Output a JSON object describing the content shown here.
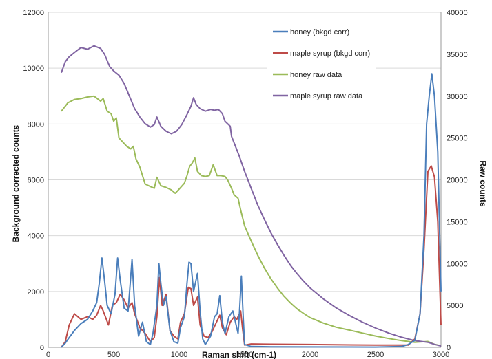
{
  "chart_data": {
    "type": "line",
    "xlabel": "Raman shift (cm-1)",
    "ylabel_left": "Background corrected counts",
    "ylabel_right": "Raw counts",
    "xlim": [
      0,
      3000
    ],
    "ylim_left": [
      0,
      12000
    ],
    "ylim_right": [
      0,
      40000
    ],
    "x_ticks": [
      "0",
      "500",
      "1000",
      "1500",
      "2000",
      "2500",
      "3000"
    ],
    "y_left_ticks": [
      "0",
      "2000",
      "4000",
      "6000",
      "8000",
      "10000",
      "12000"
    ],
    "y_right_ticks": [
      "0",
      "5000",
      "10000",
      "15000",
      "20000",
      "25000",
      "30000",
      "35000",
      "40000"
    ],
    "grid": true,
    "legend_position": "top-right",
    "series": [
      {
        "name": "honey (bkgd corr)",
        "axis": "left",
        "color": "#4a7ebb",
        "points": [
          [
            100,
            0
          ],
          [
            130,
            150
          ],
          [
            160,
            350
          ],
          [
            200,
            600
          ],
          [
            250,
            850
          ],
          [
            300,
            1000
          ],
          [
            340,
            1300
          ],
          [
            370,
            1600
          ],
          [
            390,
            2300
          ],
          [
            410,
            3200
          ],
          [
            430,
            2400
          ],
          [
            450,
            1500
          ],
          [
            480,
            1200
          ],
          [
            510,
            1900
          ],
          [
            530,
            3200
          ],
          [
            550,
            2400
          ],
          [
            580,
            1400
          ],
          [
            610,
            1300
          ],
          [
            640,
            3150
          ],
          [
            660,
            1500
          ],
          [
            690,
            400
          ],
          [
            720,
            900
          ],
          [
            750,
            200
          ],
          [
            780,
            100
          ],
          [
            800,
            500
          ],
          [
            830,
            1500
          ],
          [
            845,
            3000
          ],
          [
            860,
            2300
          ],
          [
            880,
            1500
          ],
          [
            900,
            1800
          ],
          [
            930,
            600
          ],
          [
            960,
            200
          ],
          [
            990,
            150
          ],
          [
            1010,
            700
          ],
          [
            1040,
            1100
          ],
          [
            1060,
            2300
          ],
          [
            1075,
            3050
          ],
          [
            1090,
            3000
          ],
          [
            1110,
            2000
          ],
          [
            1140,
            2650
          ],
          [
            1160,
            1300
          ],
          [
            1180,
            300
          ],
          [
            1200,
            100
          ],
          [
            1240,
            400
          ],
          [
            1270,
            1100
          ],
          [
            1290,
            1200
          ],
          [
            1310,
            1850
          ],
          [
            1330,
            900
          ],
          [
            1350,
            500
          ],
          [
            1380,
            1100
          ],
          [
            1410,
            1300
          ],
          [
            1430,
            900
          ],
          [
            1450,
            500
          ],
          [
            1460,
            1200
          ],
          [
            1475,
            2550
          ],
          [
            1490,
            1000
          ],
          [
            1500,
            100
          ],
          [
            1550,
            30
          ],
          [
            1700,
            20
          ],
          [
            2000,
            15
          ],
          [
            2500,
            10
          ],
          [
            2700,
            30
          ],
          [
            2750,
            100
          ],
          [
            2800,
            250
          ],
          [
            2840,
            1200
          ],
          [
            2870,
            4000
          ],
          [
            2890,
            8000
          ],
          [
            2910,
            9000
          ],
          [
            2930,
            9800
          ],
          [
            2950,
            9000
          ],
          [
            2975,
            7000
          ],
          [
            3000,
            2000
          ]
        ]
      },
      {
        "name": "maple syrup (bkgd corr)",
        "axis": "left",
        "color": "#be4b48",
        "points": [
          [
            100,
            0
          ],
          [
            130,
            200
          ],
          [
            160,
            800
          ],
          [
            200,
            1200
          ],
          [
            250,
            1000
          ],
          [
            300,
            1100
          ],
          [
            340,
            1000
          ],
          [
            370,
            1150
          ],
          [
            400,
            1500
          ],
          [
            420,
            1300
          ],
          [
            460,
            800
          ],
          [
            490,
            1500
          ],
          [
            520,
            1600
          ],
          [
            550,
            1900
          ],
          [
            580,
            1700
          ],
          [
            610,
            1400
          ],
          [
            640,
            1600
          ],
          [
            660,
            1200
          ],
          [
            700,
            700
          ],
          [
            740,
            500
          ],
          [
            780,
            200
          ],
          [
            810,
            350
          ],
          [
            830,
            1100
          ],
          [
            850,
            2500
          ],
          [
            870,
            1500
          ],
          [
            900,
            1900
          ],
          [
            930,
            600
          ],
          [
            960,
            400
          ],
          [
            990,
            300
          ],
          [
            1010,
            900
          ],
          [
            1040,
            1200
          ],
          [
            1070,
            2150
          ],
          [
            1090,
            2100
          ],
          [
            1110,
            1500
          ],
          [
            1140,
            1800
          ],
          [
            1160,
            800
          ],
          [
            1190,
            400
          ],
          [
            1220,
            350
          ],
          [
            1250,
            550
          ],
          [
            1280,
            850
          ],
          [
            1310,
            1150
          ],
          [
            1330,
            700
          ],
          [
            1360,
            450
          ],
          [
            1390,
            900
          ],
          [
            1420,
            1100
          ],
          [
            1440,
            1000
          ],
          [
            1470,
            1300
          ],
          [
            1485,
            650
          ],
          [
            1500,
            80
          ],
          [
            1550,
            120
          ],
          [
            1700,
            110
          ],
          [
            2000,
            100
          ],
          [
            2500,
            80
          ],
          [
            2750,
            80
          ],
          [
            2800,
            300
          ],
          [
            2840,
            1200
          ],
          [
            2870,
            3500
          ],
          [
            2900,
            6300
          ],
          [
            2925,
            6500
          ],
          [
            2950,
            6100
          ],
          [
            2975,
            4500
          ],
          [
            3000,
            800
          ]
        ]
      },
      {
        "name": "honey raw data",
        "axis": "right",
        "color": "#9bbb59",
        "points": [
          [
            100,
            28200
          ],
          [
            150,
            29200
          ],
          [
            200,
            29600
          ],
          [
            250,
            29700
          ],
          [
            300,
            29900
          ],
          [
            350,
            30000
          ],
          [
            400,
            29400
          ],
          [
            420,
            29700
          ],
          [
            450,
            28200
          ],
          [
            480,
            27900
          ],
          [
            500,
            27000
          ],
          [
            520,
            27400
          ],
          [
            540,
            25000
          ],
          [
            570,
            24500
          ],
          [
            600,
            24000
          ],
          [
            630,
            23700
          ],
          [
            650,
            24000
          ],
          [
            670,
            22500
          ],
          [
            700,
            21500
          ],
          [
            740,
            19500
          ],
          [
            780,
            19200
          ],
          [
            810,
            19000
          ],
          [
            830,
            20300
          ],
          [
            860,
            19300
          ],
          [
            900,
            19100
          ],
          [
            940,
            18800
          ],
          [
            970,
            18400
          ],
          [
            1000,
            18900
          ],
          [
            1040,
            19600
          ],
          [
            1060,
            20500
          ],
          [
            1080,
            21600
          ],
          [
            1100,
            22000
          ],
          [
            1120,
            22600
          ],
          [
            1140,
            21000
          ],
          [
            1170,
            20500
          ],
          [
            1200,
            20400
          ],
          [
            1230,
            20500
          ],
          [
            1260,
            21800
          ],
          [
            1290,
            20500
          ],
          [
            1320,
            20500
          ],
          [
            1350,
            20400
          ],
          [
            1370,
            20000
          ],
          [
            1400,
            19000
          ],
          [
            1420,
            18200
          ],
          [
            1450,
            17800
          ],
          [
            1470,
            16400
          ],
          [
            1500,
            14500
          ],
          [
            1550,
            12700
          ],
          [
            1600,
            11000
          ],
          [
            1650,
            9500
          ],
          [
            1700,
            8200
          ],
          [
            1750,
            7100
          ],
          [
            1800,
            6100
          ],
          [
            1850,
            5300
          ],
          [
            1900,
            4600
          ],
          [
            1950,
            4050
          ],
          [
            2000,
            3550
          ],
          [
            2100,
            2900
          ],
          [
            2200,
            2400
          ],
          [
            2300,
            2050
          ],
          [
            2400,
            1700
          ],
          [
            2500,
            1350
          ],
          [
            2600,
            1050
          ],
          [
            2700,
            800
          ],
          [
            2800,
            600
          ],
          [
            2900,
            700
          ],
          [
            2950,
            350
          ],
          [
            3000,
            200
          ]
        ]
      },
      {
        "name": "maple syrup raw data",
        "axis": "right",
        "color": "#8064a2",
        "points": [
          [
            100,
            32800
          ],
          [
            130,
            34100
          ],
          [
            160,
            34700
          ],
          [
            200,
            35200
          ],
          [
            250,
            35800
          ],
          [
            300,
            35600
          ],
          [
            350,
            36000
          ],
          [
            400,
            35700
          ],
          [
            430,
            35000
          ],
          [
            470,
            33500
          ],
          [
            500,
            33000
          ],
          [
            540,
            32500
          ],
          [
            580,
            31500
          ],
          [
            620,
            30000
          ],
          [
            660,
            28500
          ],
          [
            700,
            27500
          ],
          [
            740,
            26700
          ],
          [
            780,
            26300
          ],
          [
            810,
            26600
          ],
          [
            830,
            27500
          ],
          [
            860,
            26400
          ],
          [
            900,
            25800
          ],
          [
            940,
            25500
          ],
          [
            980,
            25800
          ],
          [
            1020,
            26600
          ],
          [
            1060,
            27800
          ],
          [
            1090,
            28800
          ],
          [
            1110,
            29800
          ],
          [
            1130,
            29000
          ],
          [
            1160,
            28500
          ],
          [
            1200,
            28200
          ],
          [
            1240,
            28400
          ],
          [
            1270,
            28300
          ],
          [
            1300,
            28400
          ],
          [
            1330,
            27900
          ],
          [
            1350,
            27000
          ],
          [
            1370,
            26700
          ],
          [
            1390,
            26400
          ],
          [
            1400,
            25200
          ],
          [
            1430,
            24000
          ],
          [
            1460,
            22800
          ],
          [
            1500,
            21000
          ],
          [
            1550,
            19000
          ],
          [
            1600,
            17000
          ],
          [
            1650,
            15300
          ],
          [
            1700,
            13700
          ],
          [
            1750,
            12300
          ],
          [
            1800,
            11000
          ],
          [
            1850,
            9800
          ],
          [
            1900,
            8800
          ],
          [
            1950,
            7900
          ],
          [
            2000,
            7100
          ],
          [
            2100,
            5800
          ],
          [
            2200,
            4700
          ],
          [
            2300,
            3800
          ],
          [
            2400,
            3000
          ],
          [
            2500,
            2300
          ],
          [
            2600,
            1700
          ],
          [
            2700,
            1200
          ],
          [
            2800,
            800
          ],
          [
            2900,
            600
          ],
          [
            2950,
            350
          ],
          [
            3000,
            150
          ]
        ]
      }
    ]
  }
}
